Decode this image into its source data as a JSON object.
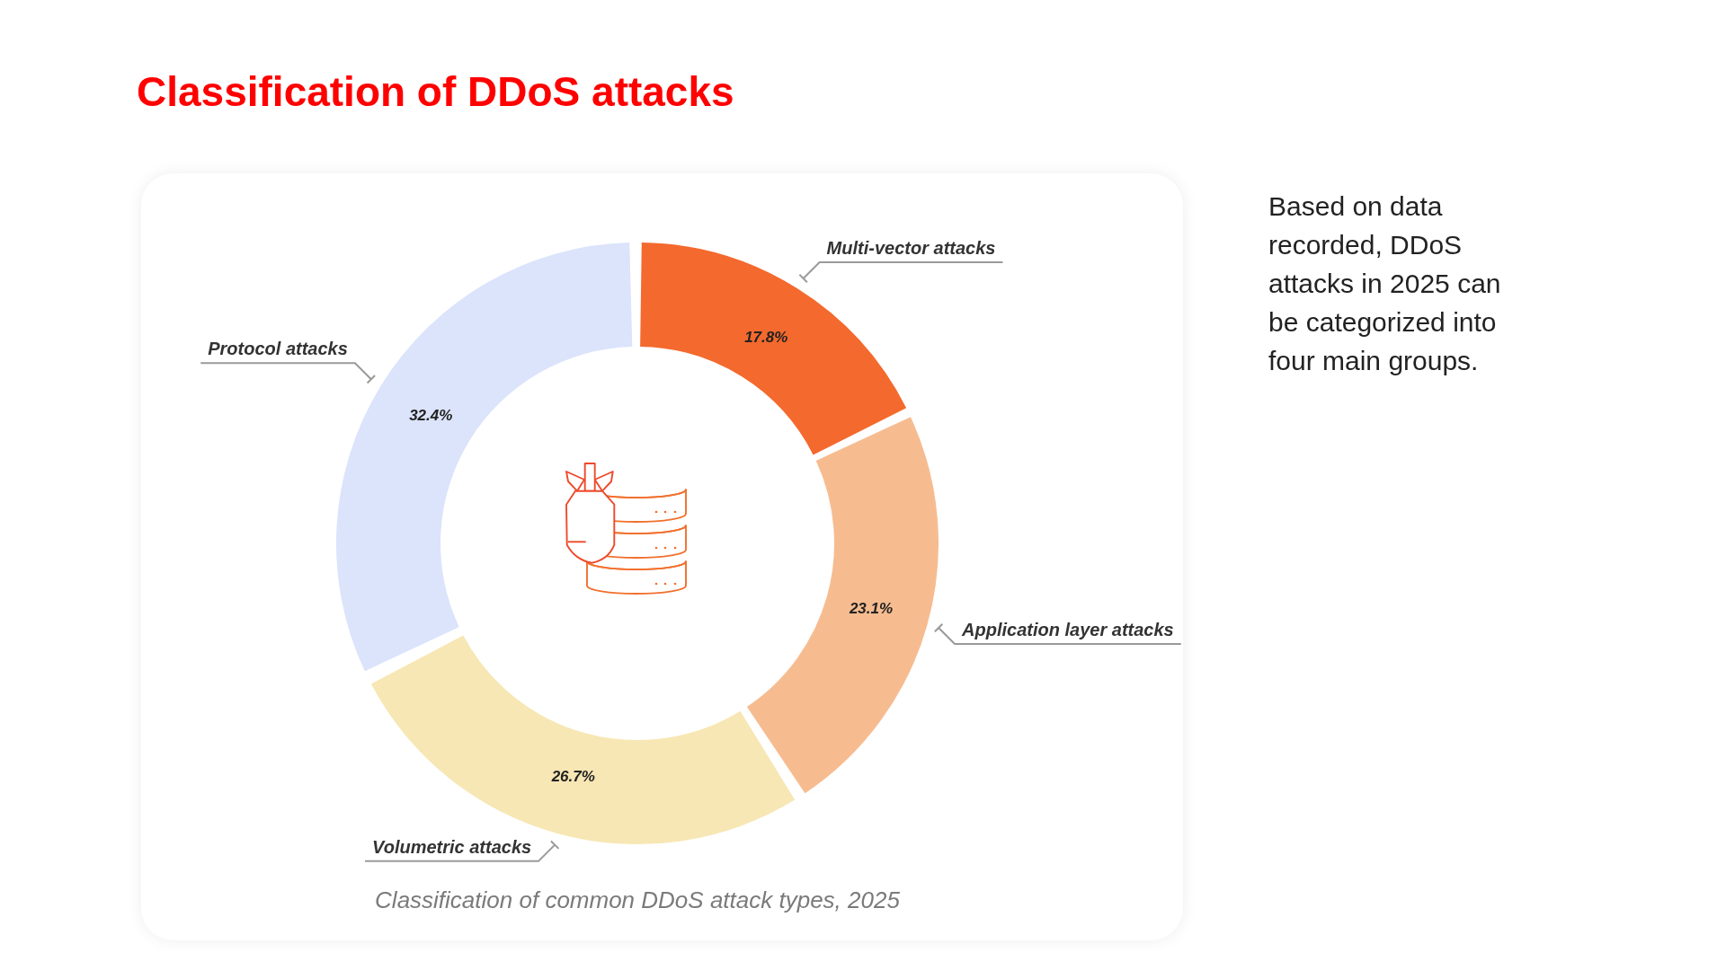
{
  "chart_data": {
    "type": "donut",
    "title": "Classification of DDoS attacks",
    "categories": [
      "Multi-vector attacks",
      "Application layer attacks",
      "Volumetric attacks",
      "Protocol attacks"
    ],
    "values": [
      17.8,
      23.1,
      26.7,
      32.4
    ],
    "colors": [
      "#f4692d",
      "#f6bc90",
      "#f7e7b4",
      "#dbe4fb"
    ],
    "value_labels": [
      "17.8%",
      "23.1%",
      "26.7%",
      "32.4%"
    ],
    "annotations": [
      "Classification of common DDoS attack types, 2025",
      "Based on data recorded, DDoS attacks in 2025 can be categorized into four main groups."
    ]
  }
}
